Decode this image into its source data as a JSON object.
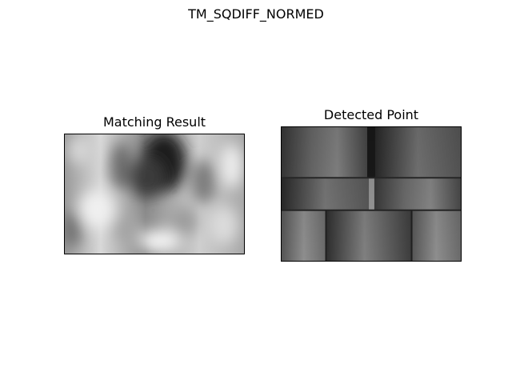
{
  "figure": {
    "suptitle": "TM_SQDIFF_NORMED",
    "panels": [
      {
        "title": "Matching Result",
        "image": "grayscale-matching-heatmap"
      },
      {
        "title": "Detected Point",
        "image": "grayscale-wall-texture"
      }
    ]
  }
}
